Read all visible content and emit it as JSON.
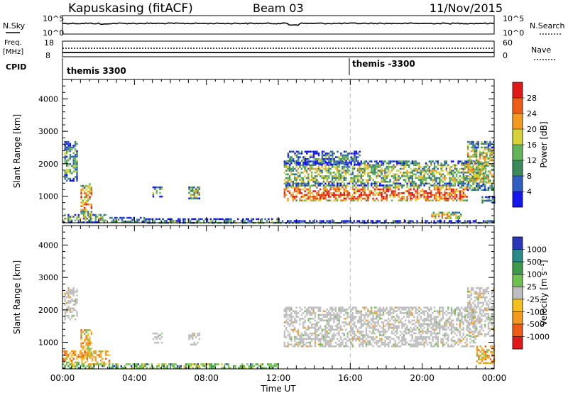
{
  "header": {
    "station": "Kapuskasing (fitACF)",
    "beam": "Beam 03",
    "date": "11/Nov/2015"
  },
  "panels": {
    "nsky_label": "N.Sky",
    "nsearch_label": "N.Search",
    "nsky_ticks": [
      "10^5",
      "10^0"
    ],
    "nsearch_ticks": [
      "10^5",
      "10^0"
    ],
    "freq_label_1": "Freq.",
    "freq_label_2": "[MHz]",
    "freq_ticks": [
      "18",
      "8"
    ],
    "nave_label": "Nave",
    "nave_ticks": [
      "60",
      "0"
    ],
    "cpid_label": "CPID",
    "cpid_segments": [
      "themis 3300",
      "themis -3300"
    ]
  },
  "chart_data": [
    {
      "type": "heatmap",
      "name": "power",
      "ylabel": "Slant Range [km]",
      "xlabel": "Time UT",
      "x_ticks": [
        "00:00",
        "04:00",
        "08:00",
        "12:00",
        "16:00",
        "20:00",
        "00:00"
      ],
      "y_ticks": [
        1000,
        2000,
        3000,
        4000
      ],
      "ylim": [
        180,
        4600
      ],
      "xlim_hours": [
        0,
        24
      ],
      "colorbar_label": "Power [dB]",
      "colorbar_ticks": [
        4,
        8,
        12,
        16,
        20,
        24,
        28
      ],
      "colorbar_colors": [
        "#1515ee",
        "#2f5fc0",
        "#3a8a5c",
        "#64b45a",
        "#d8d23a",
        "#f39a1e",
        "#ef5a14",
        "#e01818"
      ],
      "echo_regions": [
        {
          "t0": 0.0,
          "t1": 2.4,
          "r0": 200,
          "r1": 450,
          "level": 0.45
        },
        {
          "t0": 0.1,
          "t1": 0.8,
          "r0": 1500,
          "r1": 2700,
          "level": 0.35
        },
        {
          "t0": 1.0,
          "t1": 1.6,
          "r0": 400,
          "r1": 1400,
          "level": 0.7
        },
        {
          "t0": 2.6,
          "t1": 4.5,
          "r0": 200,
          "r1": 360,
          "level": 0.3
        },
        {
          "t0": 4.5,
          "t1": 12.0,
          "r0": 180,
          "r1": 320,
          "level": 0.3
        },
        {
          "t0": 5.0,
          "t1": 5.5,
          "r0": 1000,
          "r1": 1300,
          "level": 0.4
        },
        {
          "t0": 7.0,
          "t1": 7.6,
          "r0": 950,
          "r1": 1300,
          "level": 0.45
        },
        {
          "t0": 12.3,
          "t1": 22.5,
          "r0": 850,
          "r1": 1350,
          "level": 0.8
        },
        {
          "t0": 12.3,
          "t1": 23.5,
          "r0": 1350,
          "r1": 2100,
          "level": 0.45
        },
        {
          "t0": 12.5,
          "t1": 16.5,
          "r0": 2000,
          "r1": 2400,
          "level": 0.3
        },
        {
          "t0": 22.5,
          "t1": 24.0,
          "r0": 1200,
          "r1": 2700,
          "level": 0.55
        },
        {
          "t0": 20.5,
          "t1": 22.2,
          "r0": 300,
          "r1": 520,
          "level": 0.6
        },
        {
          "t0": 23.3,
          "t1": 24.0,
          "r0": 800,
          "r1": 1000,
          "level": 0.4
        },
        {
          "t0": 12.0,
          "t1": 24.0,
          "r0": 180,
          "r1": 260,
          "level": 0.3
        }
      ]
    },
    {
      "type": "heatmap",
      "name": "velocity",
      "ylabel": "Slant Range [km]",
      "xlabel": "Time UT",
      "x_ticks": [
        "00:00",
        "04:00",
        "08:00",
        "12:00",
        "16:00",
        "20:00",
        "00:00"
      ],
      "y_ticks": [
        1000,
        2000,
        3000,
        4000
      ],
      "ylim": [
        180,
        4600
      ],
      "xlim_hours": [
        0,
        24
      ],
      "colorbar_label": "Velocity [m s⁻¹]",
      "colorbar_ticks": [
        1000,
        500,
        100,
        25,
        -25,
        -100,
        -500,
        -1000
      ],
      "colorbar_colors": [
        "#2a38b8",
        "#2a8a8a",
        "#3c9a4a",
        "#70c050",
        "#bebebe",
        "#f3c020",
        "#f39a1e",
        "#ef5a14",
        "#e01818"
      ],
      "echo_regions": [
        {
          "t0": 0.0,
          "t1": 2.6,
          "r0": 350,
          "r1": 750,
          "level": "orange"
        },
        {
          "t0": 1.0,
          "t1": 1.6,
          "r0": 500,
          "r1": 1400,
          "level": "orange"
        },
        {
          "t0": 0.0,
          "t1": 12.0,
          "r0": 180,
          "r1": 350,
          "level": "green"
        },
        {
          "t0": 0.1,
          "t1": 0.8,
          "r0": 1700,
          "r1": 2700,
          "level": "grey"
        },
        {
          "t0": 5.0,
          "t1": 5.5,
          "r0": 1000,
          "r1": 1300,
          "level": "grey"
        },
        {
          "t0": 7.0,
          "t1": 7.6,
          "r0": 950,
          "r1": 1300,
          "level": "grey"
        },
        {
          "t0": 12.3,
          "t1": 23.0,
          "r0": 900,
          "r1": 2100,
          "level": "grey"
        },
        {
          "t0": 22.5,
          "t1": 24.0,
          "r0": 1200,
          "r1": 2700,
          "level": "grey"
        },
        {
          "t0": 23.0,
          "t1": 24.0,
          "r0": 350,
          "r1": 900,
          "level": "orange"
        }
      ]
    }
  ]
}
